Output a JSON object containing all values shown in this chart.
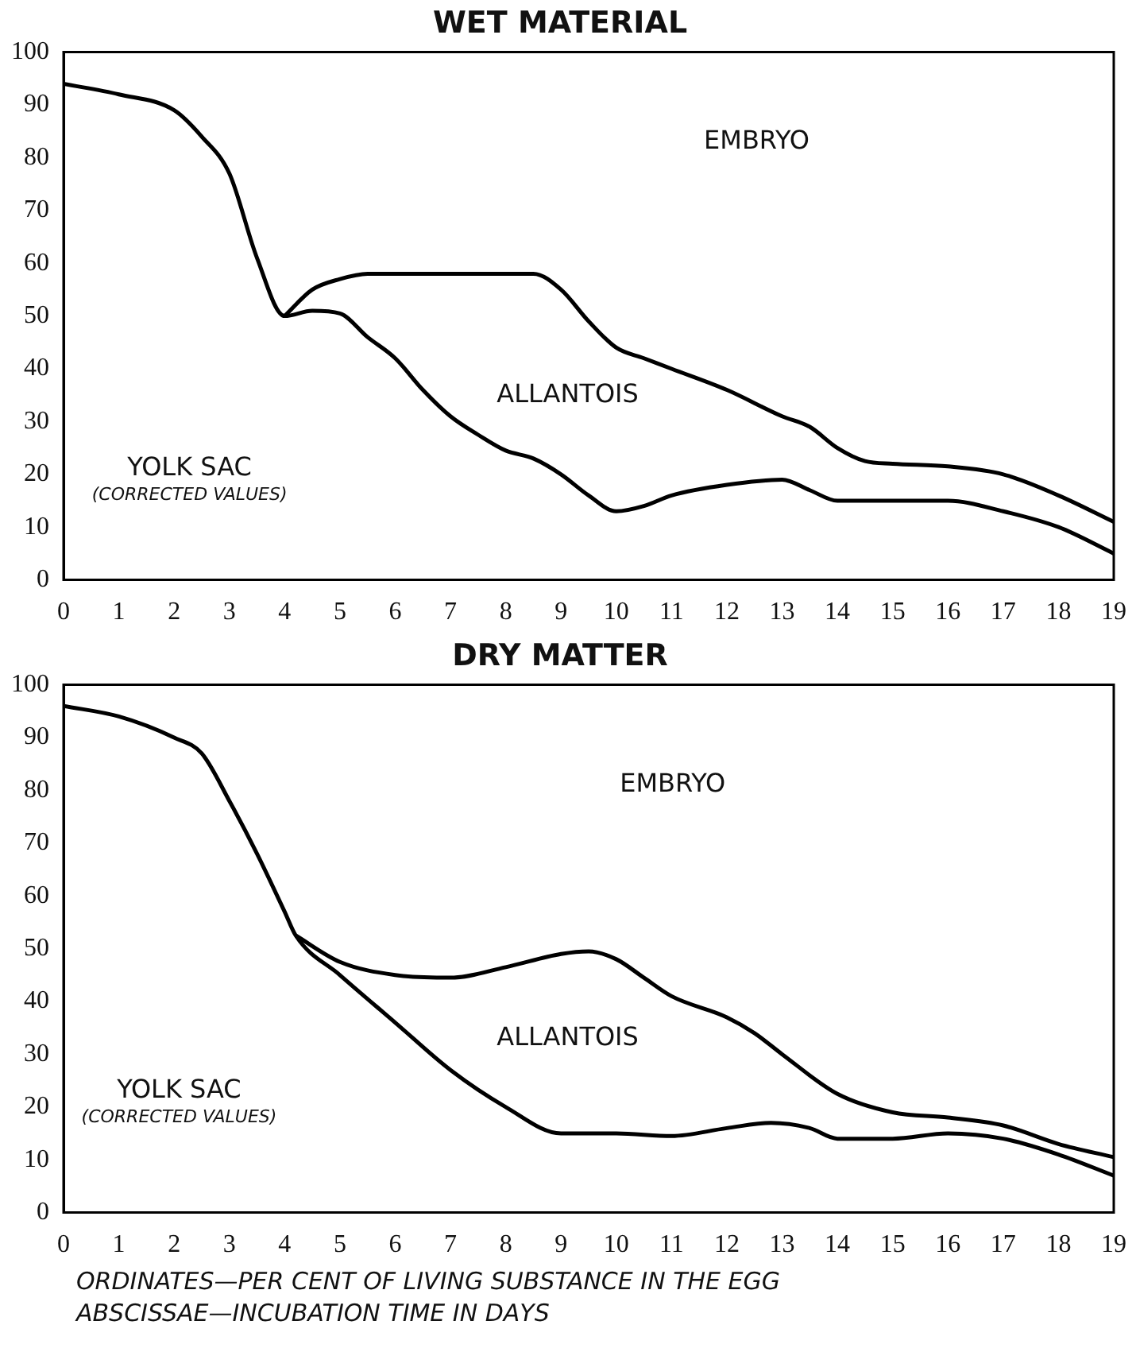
{
  "chart_data": [
    {
      "type": "line",
      "title": "WET MATERIAL",
      "marker": "none",
      "line_style": "solid",
      "legend": false,
      "grid": false,
      "xlim": [
        0,
        19
      ],
      "ylim": [
        0,
        100
      ],
      "xticks": [
        0,
        1,
        2,
        3,
        4,
        5,
        6,
        7,
        8,
        9,
        10,
        11,
        12,
        13,
        14,
        15,
        16,
        17,
        18,
        19
      ],
      "yticks": [
        0,
        10,
        20,
        30,
        40,
        50,
        60,
        70,
        80,
        90,
        100
      ],
      "series": [
        {
          "color": "#000000",
          "x": [
            0,
            1,
            2,
            2.5,
            3,
            3.5,
            4,
            4.5,
            5,
            5.5,
            6,
            6.5,
            7,
            7.5,
            8,
            8.5,
            9,
            9.5,
            10,
            10.5,
            11,
            12,
            13,
            13.5,
            14,
            15,
            16,
            17,
            18,
            19
          ],
          "values": [
            94,
            92,
            89,
            84,
            77,
            61,
            50,
            51,
            50.5,
            46,
            42,
            36,
            31,
            27.5,
            24.5,
            23,
            20,
            16,
            13,
            14,
            16,
            18,
            19,
            17,
            15,
            15,
            15,
            13,
            10,
            5
          ]
        },
        {
          "color": "#000000",
          "x": [
            4,
            4.5,
            5,
            5.5,
            6,
            7,
            8,
            8.5,
            9,
            9.5,
            10,
            10.5,
            11,
            12,
            13,
            13.5,
            14,
            14.5,
            15,
            16,
            17,
            18,
            19
          ],
          "values": [
            50,
            55,
            57,
            58,
            58,
            58,
            58,
            58,
            55,
            49,
            44,
            42,
            40,
            36,
            31,
            29,
            25,
            22.5,
            22,
            21.5,
            20,
            16,
            11
          ]
        }
      ],
      "annotations": [
        "EMBRYO",
        "ALLANTOIS",
        "YOLK SAC",
        "(CORRECTED VALUES)"
      ]
    },
    {
      "type": "line",
      "title": "DRY MATTER",
      "marker": "none",
      "line_style": "solid",
      "legend": false,
      "grid": false,
      "xlim": [
        0,
        19
      ],
      "ylim": [
        0,
        100
      ],
      "xticks": [
        0,
        1,
        2,
        3,
        4,
        5,
        6,
        7,
        8,
        9,
        10,
        11,
        12,
        13,
        14,
        15,
        16,
        17,
        18,
        19
      ],
      "yticks": [
        0,
        10,
        20,
        30,
        40,
        50,
        60,
        70,
        80,
        90,
        100
      ],
      "series": [
        {
          "color": "#000000",
          "x": [
            0,
            1,
            2,
            2.5,
            3,
            3.5,
            4,
            4.2,
            5,
            6,
            7,
            8,
            9,
            10,
            11,
            12,
            12.8,
            13.5,
            14,
            15,
            16,
            17,
            18,
            19
          ],
          "values": [
            96,
            94,
            90,
            87,
            78,
            68,
            57,
            52.5,
            45,
            36,
            27,
            20,
            15,
            15,
            14.5,
            16,
            17,
            16,
            14,
            14,
            15,
            14,
            11,
            7
          ]
        },
        {
          "color": "#000000",
          "x": [
            4.2,
            5,
            6,
            7,
            8,
            9,
            9.5,
            10,
            10.5,
            11,
            12,
            12.5,
            13,
            14,
            15,
            16,
            17,
            18,
            19
          ],
          "values": [
            52.5,
            47.5,
            45,
            44.5,
            46.5,
            49,
            49.5,
            48,
            44.5,
            41,
            37,
            34,
            30,
            22.5,
            19,
            18,
            16.5,
            13,
            10.5
          ]
        }
      ],
      "annotations": [
        "EMBRYO",
        "ALLANTOIS",
        "YOLK SAC",
        "(CORRECTED VALUES)",
        "ORDINATES—PER CENT OF LIVING SUBSTANCE IN THE EGG",
        "ABSCISSAE—INCUBATION TIME IN DAYS"
      ]
    }
  ]
}
